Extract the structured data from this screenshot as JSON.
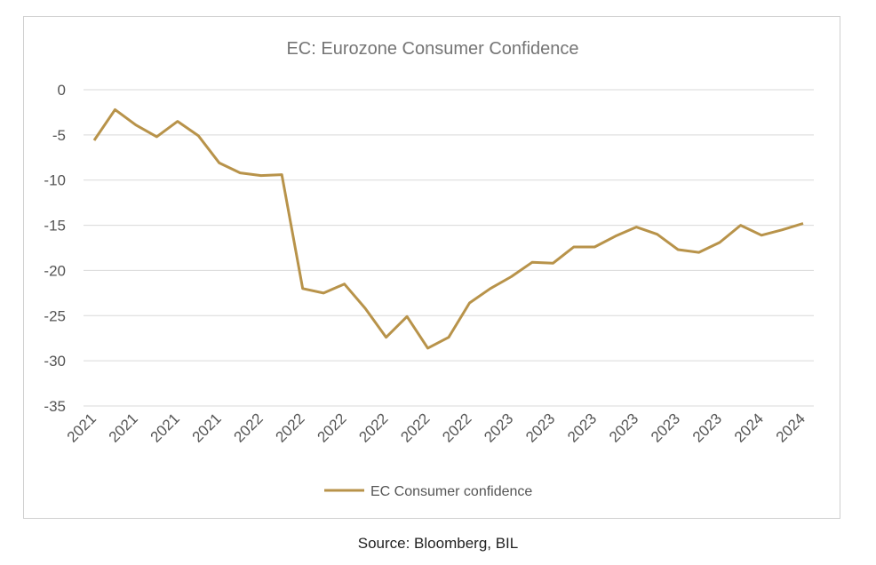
{
  "chart_data": {
    "type": "line",
    "title": "EC: Eurozone Consumer Confidence",
    "xlabel": "",
    "ylabel": "",
    "ylim": [
      -35,
      0
    ],
    "yticks": [
      0,
      -5,
      -10,
      -15,
      -20,
      -25,
      -30,
      -35
    ],
    "grid": true,
    "legend_position": "bottom",
    "x_tick_labels": [
      "2021",
      "2021",
      "2021",
      "2021",
      "2022",
      "2022",
      "2022",
      "2022",
      "2022",
      "2022",
      "2023",
      "2023",
      "2023",
      "2023",
      "2023",
      "2023",
      "2024",
      "2024"
    ],
    "series": [
      {
        "name": "EC Consumer confidence",
        "color": "#B8934A",
        "values": [
          -5.6,
          -2.2,
          -3.9,
          -5.2,
          -3.5,
          -5.1,
          -8.1,
          -9.2,
          -9.5,
          -9.4,
          -22.0,
          -22.5,
          -21.5,
          -24.2,
          -27.4,
          -25.1,
          -28.6,
          -27.4,
          -23.6,
          -22.0,
          -20.7,
          -19.1,
          -19.2,
          -17.4,
          -17.4,
          -16.2,
          -15.2,
          -16.0,
          -17.7,
          -18.0,
          -16.9,
          -15.0,
          -16.1,
          -15.5,
          -14.8
        ]
      }
    ]
  },
  "source": "Source: Bloomberg, BIL"
}
